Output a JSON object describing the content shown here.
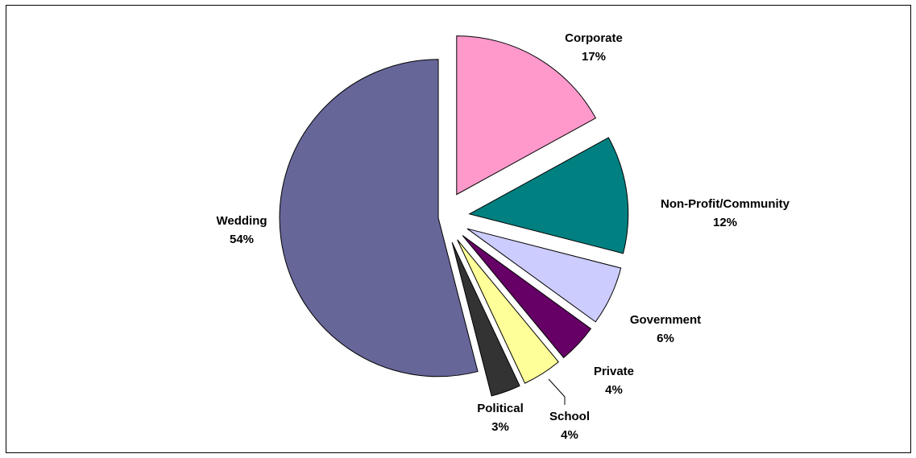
{
  "chart_data": {
    "type": "pie",
    "title": "",
    "slices": [
      {
        "label": "Corporate",
        "value": 17,
        "pct_label": "17%",
        "color": "#FF99CC"
      },
      {
        "label": "Non-Profit/Community",
        "value": 12,
        "pct_label": "12%",
        "color": "#008080"
      },
      {
        "label": "Government",
        "value": 6,
        "pct_label": "6%",
        "color": "#CCCCFF"
      },
      {
        "label": "Private",
        "value": 4,
        "pct_label": "4%",
        "color": "#660066"
      },
      {
        "label": "School",
        "value": 4,
        "pct_label": "4%",
        "color": "#FFFF99"
      },
      {
        "label": "Political",
        "value": 3,
        "pct_label": "3%",
        "color": "#333333"
      },
      {
        "label": "Wedding",
        "value": 54,
        "pct_label": "54%",
        "color": "#666699"
      }
    ],
    "exploded": true,
    "legend": "none"
  }
}
